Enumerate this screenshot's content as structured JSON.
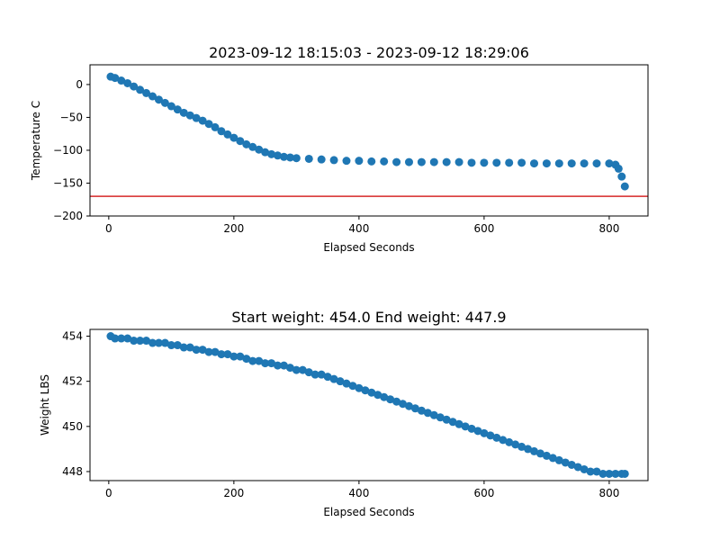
{
  "chart_data": [
    {
      "type": "scatter",
      "title": "2023-09-12 18:15:03 - 2023-09-12 18:29:06",
      "xlabel": "Elapsed Seconds",
      "ylabel": "Temperature C",
      "xlim": [
        -30,
        862
      ],
      "ylim": [
        -200,
        30
      ],
      "xticks": [
        0,
        200,
        400,
        600,
        800
      ],
      "yticks": [
        0,
        -50,
        -100,
        -150,
        -200
      ],
      "marker_color": "#1f77b4",
      "reference_line": {
        "y": -170,
        "color": "#d62728"
      },
      "series": [
        {
          "x": [
            3,
            10,
            20,
            30,
            40,
            50,
            60,
            70,
            80,
            90,
            100,
            110,
            120,
            130,
            140,
            150,
            160,
            170,
            180,
            190,
            200,
            210,
            220,
            230,
            240,
            250,
            260,
            270,
            280,
            290,
            300,
            320,
            340,
            360,
            380,
            400,
            420,
            440,
            460,
            480,
            500,
            520,
            540,
            560,
            580,
            600,
            620,
            640,
            660,
            680,
            700,
            720,
            740,
            760,
            780,
            800,
            810,
            815,
            820,
            825
          ],
          "y": [
            12,
            10,
            6,
            2,
            -3,
            -8,
            -13,
            -18,
            -23,
            -28,
            -33,
            -38,
            -43,
            -47,
            -51,
            -55,
            -60,
            -65,
            -71,
            -76,
            -81,
            -86,
            -91,
            -95,
            -99,
            -103,
            -106,
            -108,
            -110,
            -111,
            -112,
            -113,
            -114,
            -115,
            -116,
            -116,
            -117,
            -117,
            -118,
            -118,
            -118,
            -118,
            -118,
            -118,
            -119,
            -119,
            -119,
            -119,
            -119,
            -120,
            -120,
            -120,
            -120,
            -120,
            -120,
            -120,
            -122,
            -128,
            -140,
            -155
          ]
        }
      ]
    },
    {
      "type": "scatter",
      "title": "Start weight: 454.0 End weight: 447.9",
      "xlabel": "Elapsed Seconds",
      "ylabel": "Weight LBS",
      "xlim": [
        -30,
        862
      ],
      "ylim": [
        447.6,
        454.3
      ],
      "xticks": [
        0,
        200,
        400,
        600,
        800
      ],
      "yticks": [
        448,
        450,
        452,
        454
      ],
      "marker_color": "#1f77b4",
      "series": [
        {
          "x": [
            3,
            10,
            20,
            30,
            40,
            50,
            60,
            70,
            80,
            90,
            100,
            110,
            120,
            130,
            140,
            150,
            160,
            170,
            180,
            190,
            200,
            210,
            220,
            230,
            240,
            250,
            260,
            270,
            280,
            290,
            300,
            310,
            320,
            330,
            340,
            350,
            360,
            370,
            380,
            390,
            400,
            410,
            420,
            430,
            440,
            450,
            460,
            470,
            480,
            490,
            500,
            510,
            520,
            530,
            540,
            550,
            560,
            570,
            580,
            590,
            600,
            610,
            620,
            630,
            640,
            650,
            660,
            670,
            680,
            690,
            700,
            710,
            720,
            730,
            740,
            750,
            760,
            770,
            780,
            790,
            800,
            810,
            820,
            825
          ],
          "y": [
            454.0,
            453.9,
            453.9,
            453.9,
            453.8,
            453.8,
            453.8,
            453.7,
            453.7,
            453.7,
            453.6,
            453.6,
            453.5,
            453.5,
            453.4,
            453.4,
            453.3,
            453.3,
            453.2,
            453.2,
            453.1,
            453.1,
            453.0,
            452.9,
            452.9,
            452.8,
            452.8,
            452.7,
            452.7,
            452.6,
            452.5,
            452.5,
            452.4,
            452.3,
            452.3,
            452.2,
            452.1,
            452.0,
            451.9,
            451.8,
            451.7,
            451.6,
            451.5,
            451.4,
            451.3,
            451.2,
            451.1,
            451.0,
            450.9,
            450.8,
            450.7,
            450.6,
            450.5,
            450.4,
            450.3,
            450.2,
            450.1,
            450.0,
            449.9,
            449.8,
            449.7,
            449.6,
            449.5,
            449.4,
            449.3,
            449.2,
            449.1,
            449.0,
            448.9,
            448.8,
            448.7,
            448.6,
            448.5,
            448.4,
            448.3,
            448.2,
            448.1,
            448.0,
            448.0,
            447.9,
            447.9,
            447.9,
            447.9,
            447.9
          ]
        }
      ]
    }
  ]
}
